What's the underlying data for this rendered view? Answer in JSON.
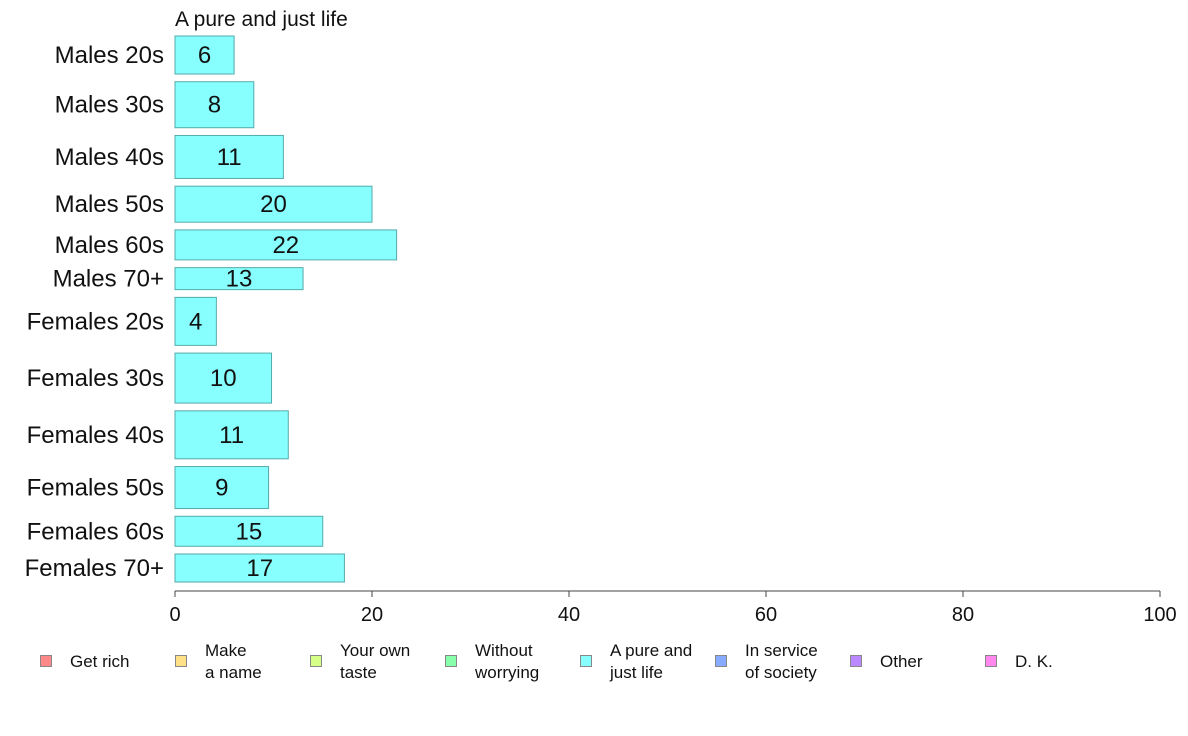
{
  "chart_data": {
    "type": "bar",
    "orientation": "horizontal",
    "title": "A pure and just life",
    "categories": [
      "Males 20s",
      "Males 30s",
      "Males 40s",
      "Males 50s",
      "Males 60s",
      "Males 70+",
      "Females 20s",
      "Females 30s",
      "Females 40s",
      "Females 50s",
      "Females 60s",
      "Females 70+"
    ],
    "values": [
      6,
      8,
      11,
      20,
      22,
      13,
      4,
      10,
      11,
      9,
      15,
      17
    ],
    "relative_widths": [
      6.0,
      8.0,
      11.0,
      20.0,
      22.5,
      13.0,
      4.2,
      9.8,
      11.5,
      9.5,
      15.0,
      17.2
    ],
    "relative_heights": [
      38,
      46,
      43,
      36,
      30,
      22,
      48,
      50,
      48,
      42,
      30,
      28
    ],
    "bar_color": "#88FFFF",
    "bar_border_color": "#55aaaa",
    "xlim": [
      0,
      100
    ],
    "xticks": [
      0,
      20,
      40,
      60,
      80,
      100
    ],
    "xlabel": "",
    "ylabel": "",
    "grid": false,
    "legend_position": "bottom",
    "legend": [
      {
        "label": "Get rich",
        "color": "#FF8888"
      },
      {
        "label": "Make\na name",
        "color": "#FFE188"
      },
      {
        "label": "Your own\ntaste",
        "color": "#D6FF88"
      },
      {
        "label": "Without\nworrying",
        "color": "#88FFAA"
      },
      {
        "label": "A pure and\njust life",
        "color": "#88FFFF"
      },
      {
        "label": "In service\nof society",
        "color": "#88AAFF"
      },
      {
        "label": "Other",
        "color": "#BB88FF"
      },
      {
        "label": "D. K.",
        "color": "#FF88EE"
      }
    ]
  }
}
